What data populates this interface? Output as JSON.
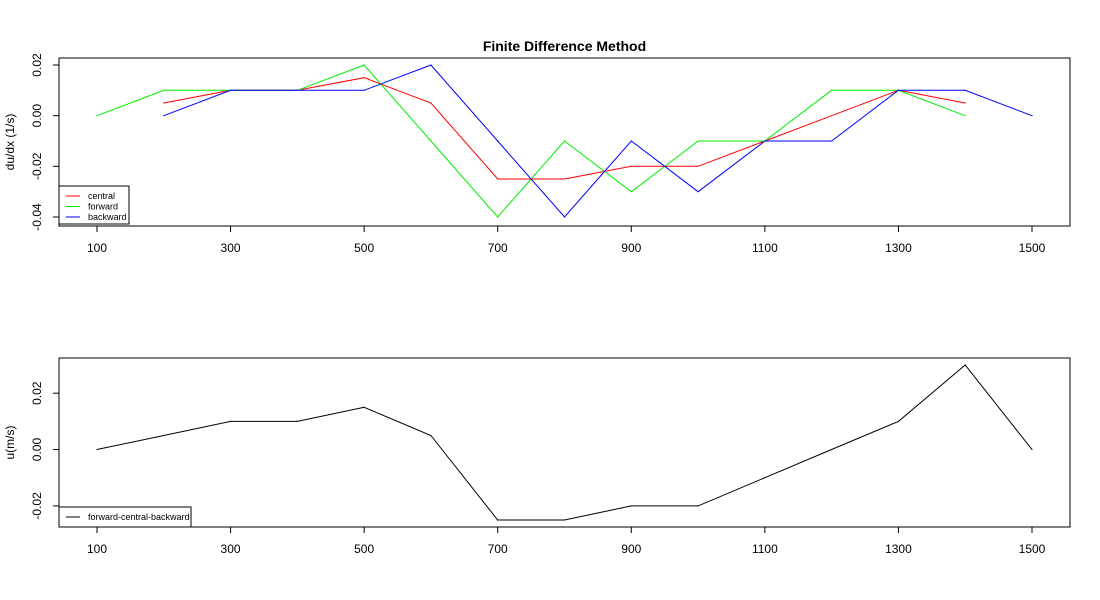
{
  "chart_data": [
    {
      "type": "line",
      "title": "Finite Difference Method",
      "xlabel": "",
      "ylabel": "du/dx (1/s)",
      "xlim": [
        100,
        1500
      ],
      "ylim": [
        -0.04,
        0.02
      ],
      "x_ticks": [
        "100",
        "300",
        "500",
        "700",
        "900",
        "1100",
        "1300",
        "1500"
      ],
      "y_ticks": [
        "-0.04",
        "-0.02",
        "0.00",
        "0.02"
      ],
      "legend_position": "bottom-left",
      "series": [
        {
          "name": "central",
          "color": "#ff0000",
          "x": [
            200,
            300,
            400,
            500,
            600,
            700,
            800,
            900,
            1000,
            1100,
            1200,
            1300,
            1400
          ],
          "y": [
            0.005,
            0.01,
            0.01,
            0.015,
            0.005,
            -0.025,
            -0.025,
            -0.02,
            -0.02,
            -0.01,
            0.0,
            0.01,
            0.005
          ]
        },
        {
          "name": "forward",
          "color": "#00ee00",
          "x": [
            100,
            200,
            300,
            400,
            500,
            600,
            700,
            800,
            900,
            1000,
            1100,
            1200,
            1300,
            1400
          ],
          "y": [
            0.0,
            0.01,
            0.01,
            0.01,
            0.02,
            -0.01,
            -0.04,
            -0.01,
            -0.03,
            -0.01,
            -0.01,
            0.01,
            0.01,
            0.0
          ]
        },
        {
          "name": "backward",
          "color": "#0000ff",
          "x": [
            200,
            300,
            400,
            500,
            600,
            700,
            800,
            900,
            1000,
            1100,
            1200,
            1300,
            1400,
            1500
          ],
          "y": [
            0.0,
            0.01,
            0.01,
            0.01,
            0.02,
            -0.01,
            -0.04,
            -0.01,
            -0.03,
            -0.01,
            -0.01,
            0.01,
            0.01,
            0.0
          ]
        }
      ]
    },
    {
      "type": "line",
      "title": "",
      "xlabel": "",
      "ylabel": "u(m/s)",
      "xlim": [
        100,
        1500
      ],
      "ylim": [
        -0.025,
        0.03
      ],
      "x_ticks": [
        "100",
        "300",
        "500",
        "700",
        "900",
        "1100",
        "1300",
        "1500"
      ],
      "y_ticks": [
        "-0.02",
        "0.00",
        "0.02"
      ],
      "legend_position": "bottom-left",
      "series": [
        {
          "name": "forward-central-backward",
          "color": "#000000",
          "x": [
            100,
            200,
            300,
            400,
            500,
            600,
            700,
            800,
            900,
            1000,
            1100,
            1200,
            1300,
            1400,
            1500
          ],
          "y": [
            0.0,
            0.005,
            0.01,
            0.01,
            0.015,
            0.005,
            -0.025,
            -0.025,
            -0.02,
            -0.02,
            -0.01,
            0.0,
            0.01,
            0.03,
            0.0
          ]
        }
      ]
    }
  ]
}
